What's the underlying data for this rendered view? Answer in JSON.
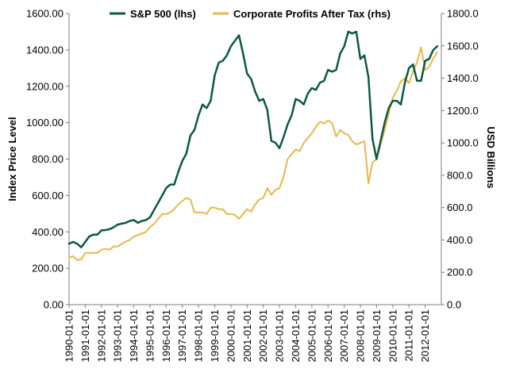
{
  "chart_data": {
    "type": "line",
    "title": "",
    "xlabel": "",
    "ylabel_left": "Index Price Level",
    "ylabel_right": "USD Billions",
    "ylim_left": [
      0,
      1600
    ],
    "ylim_right": [
      0,
      1800
    ],
    "yticks_left": [
      "0.00",
      "200.00",
      "400.00",
      "600.00",
      "800.00",
      "1000.00",
      "1200.00",
      "1400.00",
      "1600.00"
    ],
    "yticks_right": [
      "0.0",
      "200.0",
      "400.0",
      "600.0",
      "800.0",
      "1000.0",
      "1200.0",
      "1400.0",
      "1600.0",
      "1800.0"
    ],
    "x_tick_labels": [
      "1990-01-01",
      "1991-01-01",
      "1992-01-01",
      "1993-01-01",
      "1994-01-01",
      "1995-01-01",
      "1996-01-01",
      "1997-01-01",
      "1998-01-01",
      "1999-01-01",
      "2000-01-01",
      "2001-01-01",
      "2002-01-01",
      "2003-01-01",
      "2004-01-01",
      "2005-01-01",
      "2006-01-01",
      "2007-01-01",
      "2008-01-01",
      "2009-01-01",
      "2010-01-01",
      "2011-01-01",
      "2012-01-01"
    ],
    "x_start": 1990.0,
    "x_end": 2013.0,
    "legend_position": "top",
    "grid": false,
    "series": [
      {
        "name": "S&P 500 (lhs)",
        "axis": "left",
        "color": "#0b5a3e",
        "x": [
          1990.0,
          1990.25,
          1990.5,
          1990.75,
          1991.0,
          1991.25,
          1991.5,
          1991.75,
          1992.0,
          1992.25,
          1992.5,
          1992.75,
          1993.0,
          1993.25,
          1993.5,
          1993.75,
          1994.0,
          1994.25,
          1994.5,
          1994.75,
          1995.0,
          1995.25,
          1995.5,
          1995.75,
          1996.0,
          1996.25,
          1996.5,
          1996.75,
          1997.0,
          1997.25,
          1997.5,
          1997.75,
          1998.0,
          1998.25,
          1998.5,
          1998.75,
          1999.0,
          1999.25,
          1999.5,
          1999.75,
          2000.0,
          2000.25,
          2000.5,
          2000.75,
          2001.0,
          2001.25,
          2001.5,
          2001.75,
          2002.0,
          2002.25,
          2002.5,
          2002.75,
          2003.0,
          2003.25,
          2003.5,
          2003.75,
          2004.0,
          2004.25,
          2004.5,
          2004.75,
          2005.0,
          2005.25,
          2005.5,
          2005.75,
          2006.0,
          2006.25,
          2006.5,
          2006.75,
          2007.0,
          2007.25,
          2007.5,
          2007.75,
          2008.0,
          2008.25,
          2008.5,
          2008.75,
          2009.0,
          2009.25,
          2009.5,
          2009.75,
          2010.0,
          2010.25,
          2010.5,
          2010.75,
          2011.0,
          2011.25,
          2011.5,
          2011.75,
          2012.0,
          2012.25,
          2012.5,
          2012.75
        ],
        "values": [
          335,
          345,
          335,
          315,
          345,
          375,
          385,
          385,
          408,
          410,
          415,
          425,
          440,
          445,
          450,
          460,
          465,
          450,
          460,
          465,
          480,
          520,
          560,
          600,
          640,
          660,
          660,
          730,
          790,
          830,
          930,
          960,
          1040,
          1100,
          1080,
          1120,
          1260,
          1330,
          1340,
          1370,
          1420,
          1450,
          1480,
          1380,
          1270,
          1240,
          1170,
          1120,
          1130,
          1070,
          900,
          890,
          860,
          920,
          990,
          1040,
          1130,
          1120,
          1100,
          1160,
          1190,
          1180,
          1220,
          1230,
          1290,
          1280,
          1290,
          1380,
          1420,
          1500,
          1490,
          1500,
          1350,
          1370,
          1250,
          910,
          800,
          900,
          1000,
          1080,
          1120,
          1120,
          1100,
          1220,
          1300,
          1320,
          1230,
          1230,
          1340,
          1350,
          1400,
          1420
        ]
      },
      {
        "name": "Corporate Profits After Tax (rhs)",
        "axis": "right",
        "color": "#e8b84a",
        "x": [
          1990.0,
          1990.25,
          1990.5,
          1990.75,
          1991.0,
          1991.25,
          1991.5,
          1991.75,
          1992.0,
          1992.25,
          1992.5,
          1992.75,
          1993.0,
          1993.25,
          1993.5,
          1993.75,
          1994.0,
          1994.25,
          1994.5,
          1994.75,
          1995.0,
          1995.25,
          1995.5,
          1995.75,
          1996.0,
          1996.25,
          1996.5,
          1996.75,
          1997.0,
          1997.25,
          1997.5,
          1997.75,
          1998.0,
          1998.25,
          1998.5,
          1998.75,
          1999.0,
          1999.25,
          1999.5,
          1999.75,
          2000.0,
          2000.25,
          2000.5,
          2000.75,
          2001.0,
          2001.25,
          2001.5,
          2001.75,
          2002.0,
          2002.25,
          2002.5,
          2002.75,
          2003.0,
          2003.25,
          2003.5,
          2003.75,
          2004.0,
          2004.25,
          2004.5,
          2004.75,
          2005.0,
          2005.25,
          2005.5,
          2005.75,
          2006.0,
          2006.25,
          2006.5,
          2006.75,
          2007.0,
          2007.25,
          2007.5,
          2007.75,
          2008.0,
          2008.25,
          2008.5,
          2008.75,
          2009.0,
          2009.25,
          2009.5,
          2009.75,
          2010.0,
          2010.25,
          2010.5,
          2010.75,
          2011.0,
          2011.25,
          2011.5,
          2011.75,
          2012.0,
          2012.25,
          2012.5,
          2012.75
        ],
        "values": [
          290,
          300,
          275,
          280,
          320,
          320,
          320,
          320,
          340,
          345,
          340,
          360,
          360,
          375,
          390,
          400,
          420,
          430,
          440,
          450,
          480,
          500,
          530,
          560,
          560,
          570,
          590,
          620,
          640,
          660,
          650,
          570,
          570,
          570,
          560,
          600,
          600,
          590,
          590,
          560,
          560,
          555,
          530,
          560,
          590,
          575,
          620,
          650,
          660,
          720,
          680,
          710,
          720,
          790,
          900,
          930,
          960,
          950,
          1000,
          1030,
          1060,
          1100,
          1130,
          1120,
          1140,
          1120,
          1040,
          1080,
          1060,
          1050,
          1010,
          990,
          1000,
          1010,
          750,
          880,
          900,
          990,
          1080,
          1180,
          1280,
          1320,
          1380,
          1400,
          1370,
          1440,
          1500,
          1590,
          1450,
          1470,
          1520,
          1560
        ]
      }
    ]
  }
}
